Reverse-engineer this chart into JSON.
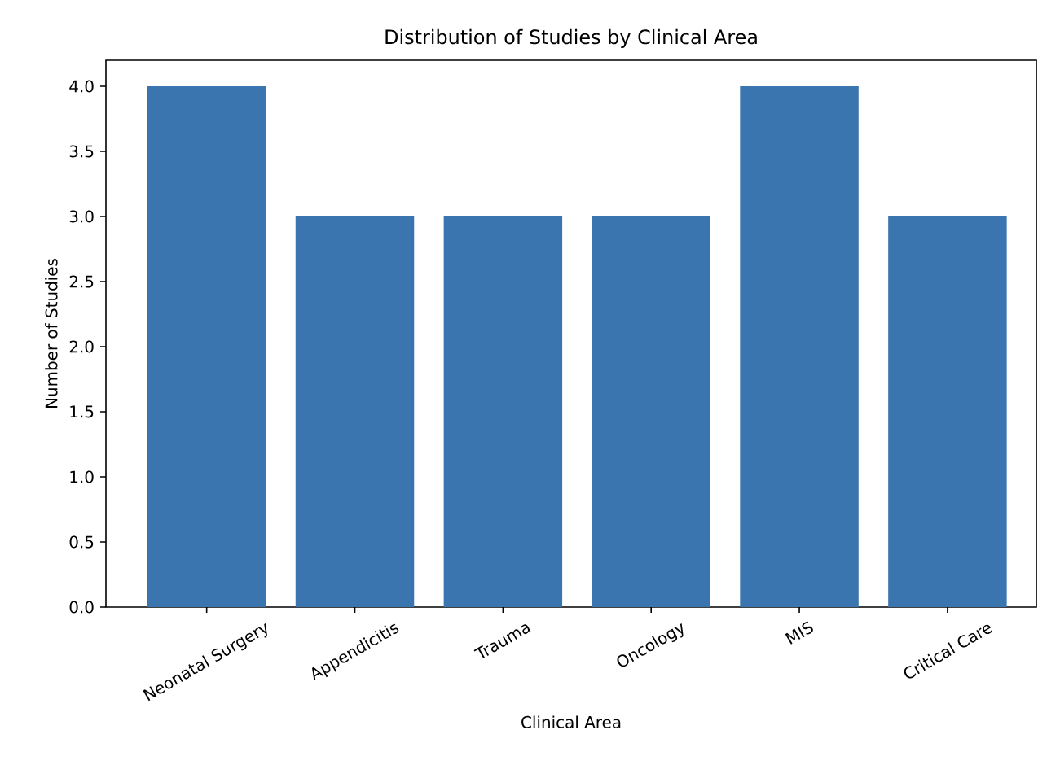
{
  "chart_data": {
    "type": "bar",
    "title": "Distribution of Studies by Clinical Area",
    "xlabel": "Clinical Area",
    "ylabel": "Number of Studies",
    "categories": [
      "Neonatal Surgery",
      "Appendicitis",
      "Trauma",
      "Oncology",
      "MIS",
      "Critical Care"
    ],
    "values": [
      4,
      3,
      3,
      3,
      4,
      3
    ],
    "color": "#3a75af",
    "ylim": [
      0,
      4.2
    ],
    "yticks": [
      {
        "value": 0,
        "label": "0.0"
      },
      {
        "value": 0.5,
        "label": "0.5"
      },
      {
        "value": 1,
        "label": "1.0"
      },
      {
        "value": 1.5,
        "label": "1.5"
      },
      {
        "value": 2,
        "label": "2.0"
      },
      {
        "value": 2.5,
        "label": "2.5"
      },
      {
        "value": 3,
        "label": "3.0"
      },
      {
        "value": 3.5,
        "label": "3.5"
      },
      {
        "value": 4,
        "label": "4.0"
      }
    ],
    "grid": false
  }
}
